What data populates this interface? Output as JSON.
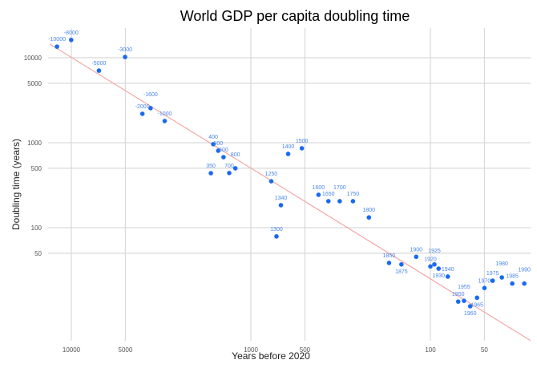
{
  "chart_data": {
    "type": "scatter",
    "title": "World GDP per capita doubling time",
    "xlabel": "Years before 2020",
    "ylabel": "Doubling time (years)",
    "x_scale": "log-reversed",
    "y_scale": "log",
    "grid": true,
    "x_ticks": [
      10000,
      5000,
      1000,
      500,
      100,
      50
    ],
    "x_tick_labels": [
      "10000",
      "5000",
      "1000",
      "500",
      "100",
      "50"
    ],
    "y_ticks": [
      10000,
      5000,
      1000,
      500,
      100,
      50
    ],
    "y_tick_labels": [
      "10000",
      "5000",
      "1000",
      "500",
      "100",
      "50"
    ],
    "xlim": [
      13200,
      27.7
    ],
    "ylim": [
      4.5,
      28000
    ],
    "points": [
      {
        "label": "-10000",
        "x": 12020,
        "y": 13500
      },
      {
        "label": "-8000",
        "x": 10020,
        "y": 16200
      },
      {
        "label": "-5000",
        "x": 7020,
        "y": 7050
      },
      {
        "label": "-3000",
        "x": 5020,
        "y": 10200
      },
      {
        "label": "-2000",
        "x": 4020,
        "y": 2190
      },
      {
        "label": "-1600",
        "x": 3620,
        "y": 2550
      },
      {
        "label": "-1000",
        "x": 3020,
        "y": 1800
      },
      {
        "label": "350",
        "x": 1670,
        "y": 438
      },
      {
        "label": "400",
        "x": 1620,
        "y": 960
      },
      {
        "label": "500",
        "x": 1520,
        "y": 805
      },
      {
        "label": "600",
        "x": 1420,
        "y": 676
      },
      {
        "label": "700",
        "x": 1320,
        "y": 440
      },
      {
        "label": "800",
        "x": 1220,
        "y": 500
      },
      {
        "label": "1250",
        "x": 770,
        "y": 352
      },
      {
        "label": "1300",
        "x": 720,
        "y": 79
      },
      {
        "label": "1340",
        "x": 680,
        "y": 184
      },
      {
        "label": "1400",
        "x": 620,
        "y": 738
      },
      {
        "label": "1500",
        "x": 520,
        "y": 860
      },
      {
        "label": "1600",
        "x": 420,
        "y": 244
      },
      {
        "label": "1650",
        "x": 370,
        "y": 205
      },
      {
        "label": "1700",
        "x": 320,
        "y": 205
      },
      {
        "label": "1750",
        "x": 270,
        "y": 205
      },
      {
        "label": "1800",
        "x": 220,
        "y": 132
      },
      {
        "label": "1850",
        "x": 170,
        "y": 38.5
      },
      {
        "label": "1875",
        "x": 145,
        "y": 37
      },
      {
        "label": "1900",
        "x": 120,
        "y": 45.5
      },
      {
        "label": "1920",
        "x": 100,
        "y": 35
      },
      {
        "label": "1925",
        "x": 95,
        "y": 37
      },
      {
        "label": "1930",
        "x": 90,
        "y": 33
      },
      {
        "label": "1940",
        "x": 80,
        "y": 26.6
      },
      {
        "label": "1950",
        "x": 70,
        "y": 13.5
      },
      {
        "label": "1955",
        "x": 65,
        "y": 13.8
      },
      {
        "label": "1960",
        "x": 60,
        "y": 11.9
      },
      {
        "label": "1965",
        "x": 55,
        "y": 15
      },
      {
        "label": "1970",
        "x": 50,
        "y": 19.5
      },
      {
        "label": "1975",
        "x": 45,
        "y": 23.8
      },
      {
        "label": "1980",
        "x": 40,
        "y": 26
      },
      {
        "label": "1985",
        "x": 35,
        "y": 22
      },
      {
        "label": "1990",
        "x": 30,
        "y": 22
      }
    ],
    "trendline": {
      "type": "power",
      "from": {
        "x": 13200,
        "y": 14500
      },
      "to": {
        "x": 27.7,
        "y": 4.7
      }
    },
    "colors": {
      "points": "#1a6af0",
      "labels": "#4a86e8",
      "trendline": "#f4a7a7"
    }
  }
}
